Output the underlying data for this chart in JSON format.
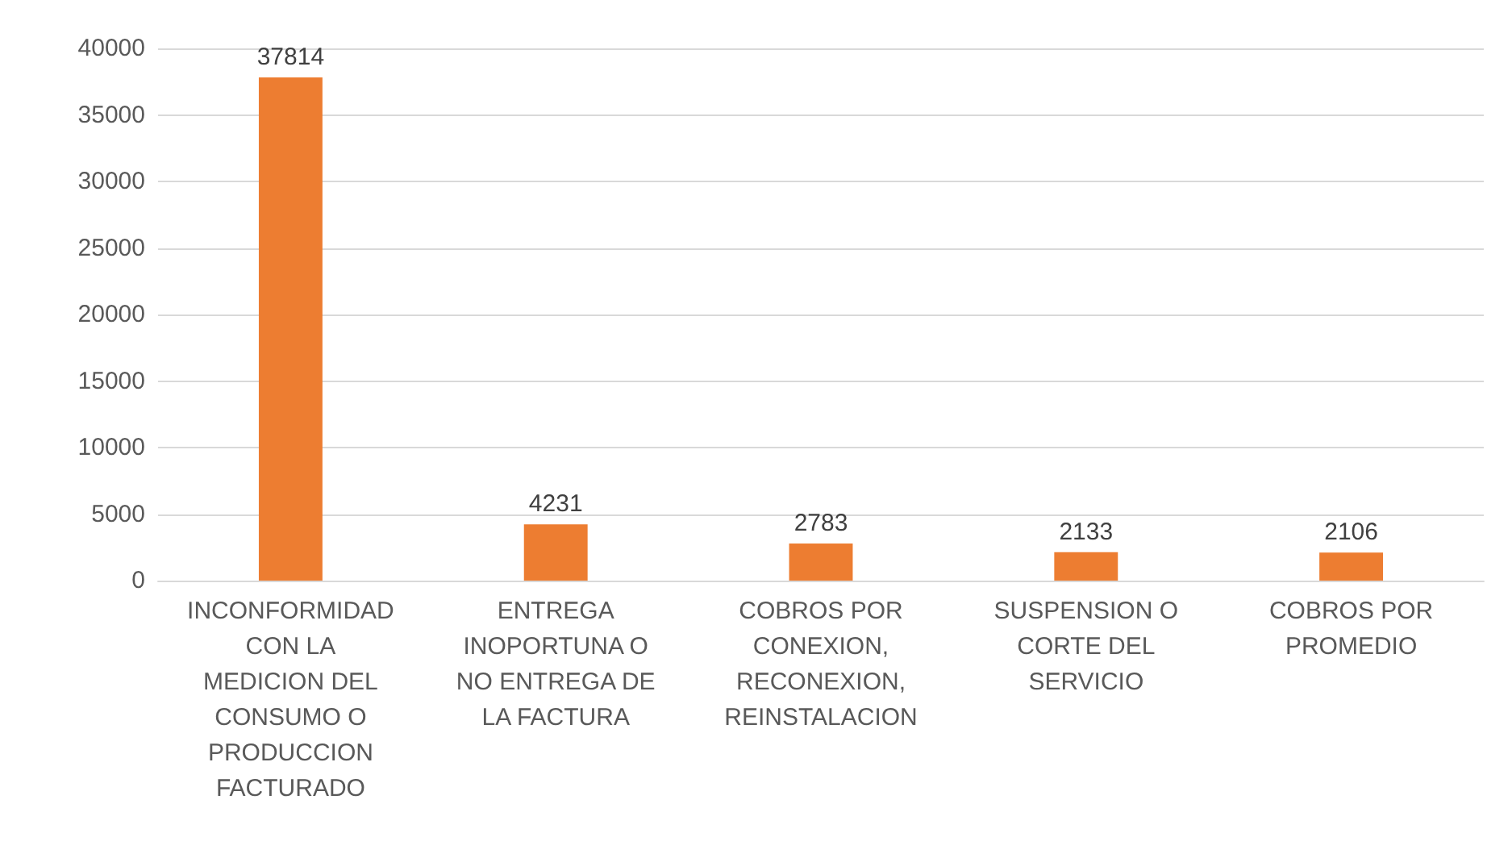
{
  "chart_data": {
    "type": "bar",
    "categories": [
      "INCONFORMIDAD CON LA MEDICION DEL CONSUMO O PRODUCCION FACTURADO",
      "ENTREGA INOPORTUNA O NO ENTREGA DE LA FACTURA",
      "COBROS POR CONEXION, RECONEXION, REINSTALACION",
      "SUSPENSION O CORTE DEL SERVICIO",
      "COBROS POR PROMEDIO"
    ],
    "values": [
      37814,
      4231,
      2783,
      2133,
      2106
    ],
    "color": "#ed7d31",
    "ylim": [
      0,
      40000
    ],
    "yticks": [
      0,
      5000,
      10000,
      15000,
      20000,
      25000,
      30000,
      35000,
      40000
    ],
    "grid": "y",
    "data_labels": true
  }
}
